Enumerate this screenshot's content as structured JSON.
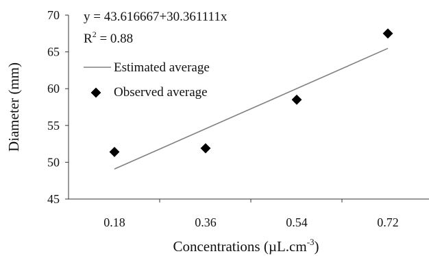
{
  "chart_data": {
    "type": "scatter",
    "xlabel": "Concentrations (µL.cm",
    "xlabel_sup": "-3",
    "xlabel_close": ")",
    "ylabel": "Diameter (mm)",
    "ylim": [
      45,
      70
    ],
    "yticks": [
      45,
      50,
      55,
      60,
      65,
      70
    ],
    "categories": [
      "0.18",
      "0.36",
      "0.54",
      "0.72"
    ],
    "grid": false,
    "legend_position": "top-left",
    "series": [
      {
        "name": "Observed average",
        "kind": "points",
        "marker": "diamond",
        "color": "#000000",
        "x": [
          0.18,
          0.36,
          0.54,
          0.72
        ],
        "y": [
          51.4,
          51.9,
          58.5,
          67.5
        ]
      },
      {
        "name": "Estimated average",
        "kind": "line",
        "color": "#808080",
        "x": [
          0.18,
          0.72
        ],
        "y": [
          49.08,
          65.48
        ]
      }
    ],
    "annotations": {
      "equation": "y = 43.616667+30.361111x",
      "r2_label": "R",
      "r2_sup": "2",
      "r2_value": " = 0.88"
    }
  }
}
